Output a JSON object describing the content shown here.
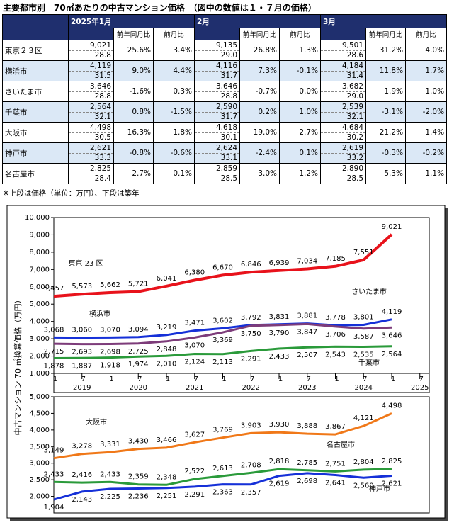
{
  "header": {
    "title": "主要都市別　70㎡あたりの中古マンション価格　（図中の数値は１・７月の価格）"
  },
  "table": {
    "months": [
      "2025年1月",
      "2月",
      "3月"
    ],
    "subheaders": [
      "前年同月比",
      "前月比"
    ],
    "rows": [
      {
        "name": "東京２３区",
        "cells": [
          [
            "9,021",
            "28.8",
            "25.6%",
            "3.4%"
          ],
          [
            "9,135",
            "29.0",
            "26.8%",
            "1.3%"
          ],
          [
            "9,501",
            "28.6",
            "31.2%",
            "4.0%"
          ]
        ]
      },
      {
        "name": "横浜市",
        "cells": [
          [
            "4,119",
            "31.5",
            "9.0%",
            "4.4%"
          ],
          [
            "4,116",
            "31.7",
            "7.3%",
            "-0.1%"
          ],
          [
            "4,184",
            "31.4",
            "11.8%",
            "1.7%"
          ]
        ]
      },
      {
        "name": "さいたま市",
        "cells": [
          [
            "3,646",
            "28.8",
            "-1.6%",
            "0.3%"
          ],
          [
            "3,646",
            "28.8",
            "-0.7%",
            "0.0%"
          ],
          [
            "3,682",
            "29.0",
            "1.9%",
            "1.0%"
          ]
        ]
      },
      {
        "name": "千葉市",
        "cells": [
          [
            "2,564",
            "32.1",
            "0.8%",
            "-1.5%"
          ],
          [
            "2,590",
            "31.7",
            "0.2%",
            "1.0%"
          ],
          [
            "2,539",
            "32.1",
            "-3.1%",
            "-2.0%"
          ]
        ]
      },
      {
        "name": "大阪市",
        "cells": [
          [
            "4,498",
            "30.5",
            "16.3%",
            "1.8%"
          ],
          [
            "4,618",
            "30.1",
            "19.0%",
            "2.7%"
          ],
          [
            "4,684",
            "30.2",
            "21.2%",
            "1.4%"
          ]
        ]
      },
      {
        "name": "神戸市",
        "cells": [
          [
            "2,621",
            "33.3",
            "-0.8%",
            "-0.6%"
          ],
          [
            "2,624",
            "33.1",
            "-2.4%",
            "0.1%"
          ],
          [
            "2,619",
            "33.2",
            "-0.3%",
            "-0.2%"
          ]
        ]
      },
      {
        "name": "名古屋市",
        "cells": [
          [
            "2,825",
            "28.4",
            "2.7%",
            "0.1%"
          ],
          [
            "2,859",
            "28.5",
            "3.0%",
            "1.2%"
          ],
          [
            "2,890",
            "28.5",
            "5.3%",
            "1.1%"
          ]
        ]
      }
    ]
  },
  "note": "※上段は価格（単位：万円）、下段は築年",
  "chart_data": [
    {
      "type": "line",
      "ylabel": "中古マンション 70 ㎡換算価格（万円）",
      "x": [
        "2019-01",
        "2019-07",
        "2020-01",
        "2020-07",
        "2021-01",
        "2021-07",
        "2022-01",
        "2022-07",
        "2023-01",
        "2023-07",
        "2024-01",
        "2024-07",
        "2025-01"
      ],
      "xlim": [
        "2019-01",
        "2025-09"
      ],
      "xticks": [
        {
          "value": "2019-01",
          "label": "1"
        },
        {
          "value": "2019-07",
          "label": "7"
        },
        {
          "value": "2020-01",
          "label": "1"
        },
        {
          "value": "2020-07",
          "label": "7"
        },
        {
          "value": "2021-01",
          "label": "1"
        },
        {
          "value": "2021-07",
          "label": "7"
        },
        {
          "value": "2022-01",
          "label": "1"
        },
        {
          "value": "2022-07",
          "label": "7"
        },
        {
          "value": "2023-01",
          "label": "1"
        },
        {
          "value": "2023-07",
          "label": "7"
        },
        {
          "value": "2024-01",
          "label": "1"
        },
        {
          "value": "2024-07",
          "label": "7"
        },
        {
          "value": "2025-01",
          "label": "1"
        },
        {
          "value": "2025-07",
          "label": "7"
        }
      ],
      "years": [
        "2019",
        "2020",
        "2021",
        "2022",
        "2023",
        "2024",
        "2025"
      ],
      "ylim": [
        1000,
        10000
      ],
      "yticks": [
        {
          "value": 1000,
          "label": "1,000"
        },
        {
          "value": 2000,
          "label": "2,000"
        },
        {
          "value": 3000,
          "label": "3,000"
        },
        {
          "value": 4000,
          "label": "4,000"
        },
        {
          "value": 5000,
          "label": "5,000"
        },
        {
          "value": 6000,
          "label": "6,000"
        },
        {
          "value": 7000,
          "label": "7,000"
        },
        {
          "value": 8000,
          "label": "8,000"
        },
        {
          "value": 9000,
          "label": "9,000"
        },
        {
          "value": 10000,
          "label": "10,000"
        }
      ],
      "series": [
        {
          "name": "東京 23 区",
          "color": "#e8121b",
          "values": [
            5457,
            5573,
            5662,
            5721,
            6041,
            6380,
            6670,
            6846,
            6939,
            7034,
            7185,
            7551,
            9021
          ],
          "value_labels": [
            "5,457",
            "5,573",
            "5,662",
            "5,721",
            "6,041",
            "6,380",
            "6,670",
            "6,846",
            "6,939",
            "7,034",
            "7,185",
            "7,551",
            "9,021"
          ]
        },
        {
          "name": "横浜市",
          "color": "#1530d8",
          "values": [
            3068,
            3060,
            3070,
            3094,
            3219,
            3471,
            3602,
            3792,
            3831,
            3881,
            3778,
            3801,
            4119
          ],
          "value_labels": [
            "3,068",
            "3,060",
            "3,070",
            "3,094",
            "3,219",
            "3,471",
            "3,602",
            "3,792",
            "3,831",
            "3,881",
            "3,778",
            "3,801",
            "4,119"
          ]
        },
        {
          "name": "さいたま市",
          "color": "#7d3c7a",
          "values": [
            2715,
            2693,
            2698,
            2725,
            2848,
            3070,
            3369,
            3750,
            3790,
            3847,
            3706,
            3587,
            3646
          ],
          "value_labels": [
            "2,715",
            "2,693",
            "2,698",
            "2,725",
            "2,848",
            "3,070",
            "3,369",
            "3,750",
            "3,790",
            "3,847",
            "3,706",
            "3,587",
            "3,646"
          ]
        },
        {
          "name": "千葉市",
          "color": "#2a9a3a",
          "values": [
            1878,
            1887,
            1918,
            1974,
            2010,
            2124,
            2113,
            2291,
            2433,
            2507,
            2543,
            2535,
            2564
          ],
          "value_labels": [
            "1,878",
            "1,887",
            "1,918",
            "1,974",
            "2,010",
            "2,124",
            "2,113",
            "2,291",
            "2,433",
            "2,507",
            "2,543",
            "2,535",
            "2,564"
          ]
        }
      ]
    },
    {
      "type": "line",
      "x": [
        "2019-01",
        "2019-07",
        "2020-01",
        "2020-07",
        "2021-01",
        "2021-07",
        "2022-01",
        "2022-07",
        "2023-01",
        "2023-07",
        "2024-01",
        "2024-07",
        "2025-01"
      ],
      "xlim": [
        "2019-01",
        "2025-09"
      ],
      "ylim": [
        1500,
        5000
      ],
      "yticks": [
        {
          "value": 2000,
          "label": "2,000"
        },
        {
          "value": 2500,
          "label": "2,500"
        },
        {
          "value": 3000,
          "label": "3,000"
        },
        {
          "value": 3500,
          "label": "3,500"
        },
        {
          "value": 4000,
          "label": "4,000"
        },
        {
          "value": 4500,
          "label": "4,500"
        },
        {
          "value": 5000,
          "label": "5,000"
        }
      ],
      "series": [
        {
          "name": "大阪市",
          "color": "#f07818",
          "values": [
            3149,
            3278,
            3331,
            3430,
            3466,
            3627,
            3769,
            3903,
            3930,
            3888,
            3867,
            4121,
            4498
          ],
          "value_labels": [
            "3,149",
            "3,278",
            "3,331",
            "3,430",
            "3,466",
            "3,627",
            "3,769",
            "3,903",
            "3,930",
            "3,888",
            "3,867",
            "4,121",
            "4,498"
          ]
        },
        {
          "name": "名古屋市",
          "color": "#2a9a3a",
          "values": [
            2433,
            2416,
            2433,
            2359,
            2348,
            2522,
            2613,
            2708,
            2818,
            2785,
            2751,
            2804,
            2825
          ],
          "value_labels": [
            "2,433",
            "2,416",
            "2,433",
            "2,359",
            "2,348",
            "2,522",
            "2,613",
            "2,708",
            "2,818",
            "2,785",
            "2,751",
            "2,804",
            "2,825"
          ]
        },
        {
          "name": "神戸市",
          "color": "#1530d8",
          "values": [
            1904,
            2143,
            2225,
            2236,
            2251,
            2291,
            2363,
            2357,
            2619,
            2698,
            2641,
            2560,
            2621
          ],
          "value_labels": [
            "1,904",
            "2,143",
            "2,225",
            "2,236",
            "2,251",
            "2,291",
            "2,363",
            "2,357",
            "2,619",
            "2,698",
            "2,641",
            "2,560",
            "2,621"
          ]
        }
      ]
    }
  ]
}
